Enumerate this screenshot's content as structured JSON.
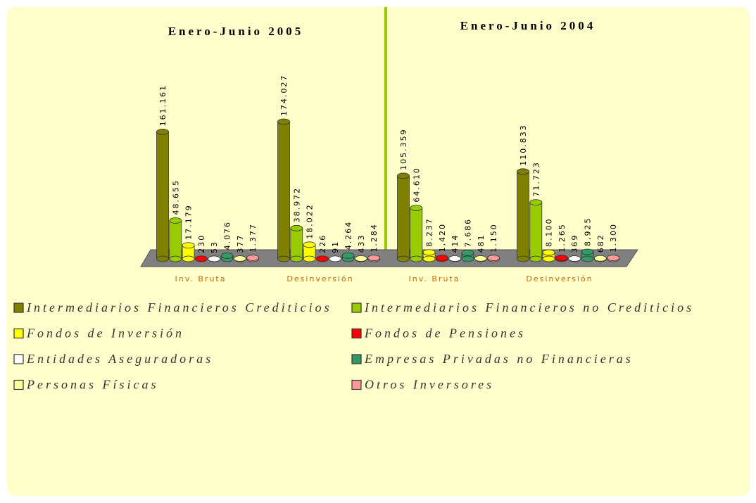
{
  "chart_data": [
    {
      "type": "bar",
      "title": "Enero-Junio 2005",
      "categories": [
        "Inv. Bruta",
        "Desinversión"
      ],
      "series": [
        {
          "name": "Intermediarios Financieros Crediticios",
          "color": "#808000",
          "values": [
            161161,
            174027
          ],
          "value_labels": [
            "161.161",
            "174.027"
          ]
        },
        {
          "name": "Intermediarios Financieros no Crediticios",
          "color": "#99cc00",
          "values": [
            48655,
            38972
          ],
          "value_labels": [
            "48.655",
            "38.972"
          ]
        },
        {
          "name": "Fondos de Inversión",
          "color": "#ffff00",
          "values": [
            17179,
            18022
          ],
          "value_labels": [
            "17.179",
            "18.022"
          ]
        },
        {
          "name": "Fondos de Pensiones",
          "color": "#ff0000",
          "values": [
            230,
            226
          ]
        },
        {
          "name": "Entidades Aseguradoras",
          "color": "#ffffff",
          "values": [
            53,
            91
          ]
        },
        {
          "name": "Empresas Privadas no Financieras",
          "color": "#339966",
          "values": [
            4076,
            4264
          ],
          "value_labels": [
            "4.076",
            "4.264"
          ]
        },
        {
          "name": "Personas Físicas",
          "color": "#ffff99",
          "values": [
            377,
            433
          ]
        },
        {
          "name": "Otros Inversores",
          "color": "#ff9999",
          "values": [
            1377,
            1284
          ],
          "value_labels": [
            "1.377",
            "1.284"
          ]
        }
      ]
    },
    {
      "type": "bar",
      "title": "Enero-Junio 2004",
      "categories": [
        "Inv. Bruta",
        "Desinversión"
      ],
      "series": [
        {
          "values": [
            105359,
            110833
          ],
          "value_labels": [
            "105.359",
            "110.833"
          ]
        },
        {
          "values": [
            64610,
            71723
          ],
          "value_labels": [
            "64.610",
            "71.723"
          ]
        },
        {
          "values": [
            8237,
            8100
          ],
          "value_labels": [
            "8.237",
            "8.100"
          ]
        },
        {
          "values": [
            1420,
            1265
          ],
          "value_labels": [
            "1,420",
            "1.265"
          ]
        },
        {
          "values": [
            414,
            369
          ]
        },
        {
          "values": [
            7686,
            8925
          ],
          "value_labels": [
            "7.686",
            "8,925"
          ]
        },
        {
          "values": [
            481,
            682
          ]
        },
        {
          "values": [
            1150,
            1300
          ],
          "value_labels": [
            "1.150",
            "1.300"
          ]
        }
      ]
    }
  ]
}
